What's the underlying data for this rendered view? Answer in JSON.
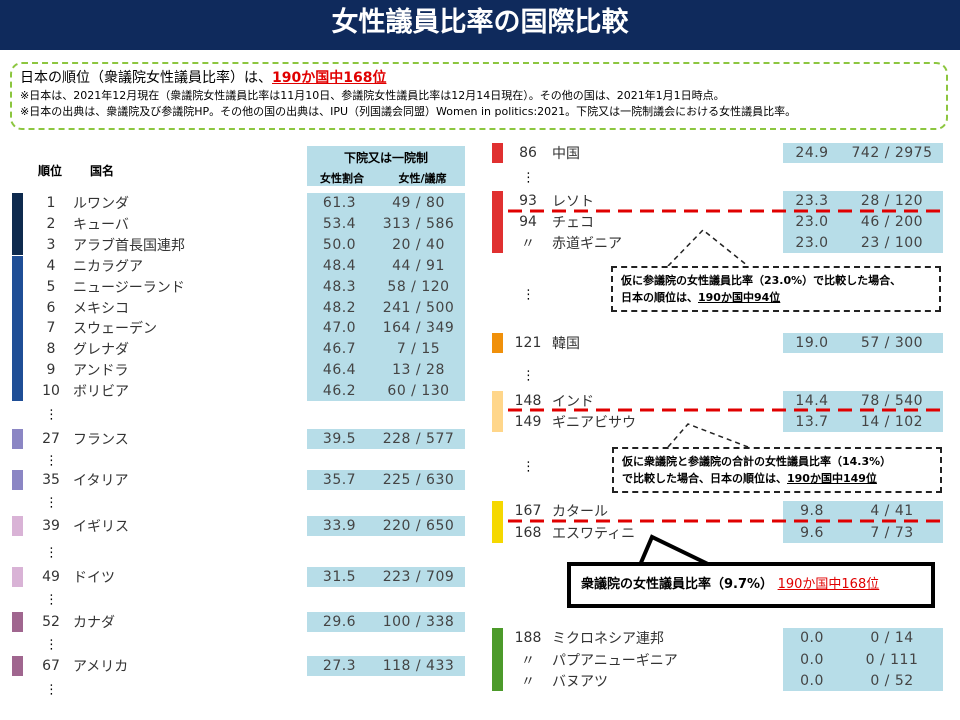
{
  "header": {
    "title": "女性議員比率の国際比較"
  },
  "summary": {
    "lead": "日本の順位（衆議院女性議員比率）は、",
    "rank": "190か国中168位",
    "notes": [
      "※日本は、2021年12月現在（衆議院女性議員比率は11月10日、参議院女性議員比率は12月14日現在）。その他の国は、2021年1月1日時点。",
      "※日本の出典は、衆議院及び参議院HP。その他の国の出典は、IPU（列国議会同盟）Women in politics:2021。下院又は一院制議会における女性議員比率。"
    ]
  },
  "left_table": {
    "headers": {
      "rank": "順位",
      "country": "国名",
      "group": "下院又は一院制",
      "ratio": "女性割合",
      "seats": "女性/議席"
    },
    "rows": [
      [
        "1",
        "ルワンダ",
        "61.3",
        "49 / 80"
      ],
      [
        "2",
        "キューバ",
        "53.4",
        "313 / 586"
      ],
      [
        "3",
        "アラブ首長国連邦",
        "50.0",
        "20 / 40"
      ],
      [
        "4",
        "ニカラグア",
        "48.4",
        "44 / 91"
      ],
      [
        "5",
        "ニュージーランド",
        "48.3",
        "58 / 120"
      ],
      [
        "6",
        "メキシコ",
        "48.2",
        "241 / 500"
      ],
      [
        "7",
        "スウェーデン",
        "47.0",
        "164 / 349"
      ],
      [
        "8",
        "グレナダ",
        "46.7",
        "7 / 15"
      ],
      [
        "9",
        "アンドラ",
        "46.4",
        "13 / 28"
      ],
      [
        "10",
        "ボリビア",
        "46.2",
        "60 / 130"
      ],
      [
        "27",
        "フランス",
        "39.5",
        "228 / 577"
      ],
      [
        "35",
        "イタリア",
        "35.7",
        "225 / 630"
      ],
      [
        "39",
        "イギリス",
        "33.9",
        "220 / 650"
      ],
      [
        "49",
        "ドイツ",
        "31.5",
        "223 / 709"
      ],
      [
        "52",
        "カナダ",
        "29.6",
        "100 / 338"
      ],
      [
        "67",
        "アメリカ",
        "27.3",
        "118 / 433"
      ]
    ]
  },
  "right_table": {
    "rows": [
      [
        "86",
        "中国",
        "24.9",
        "742 / 2975"
      ],
      [
        "93",
        "レソト",
        "23.3",
        "28 / 120"
      ],
      [
        "94",
        "チェコ",
        "23.0",
        "46 / 200"
      ],
      [
        "〃",
        "赤道ギニア",
        "23.0",
        "23 / 100"
      ],
      [
        "121",
        "韓国",
        "19.0",
        "57 / 300"
      ],
      [
        "148",
        "インド",
        "14.4",
        "78 / 540"
      ],
      [
        "149",
        "ギニアビサウ",
        "13.7",
        "14 / 102"
      ],
      [
        "167",
        "カタール",
        "9.8",
        "4 / 41"
      ],
      [
        "168",
        "エスワティニ",
        "9.6",
        "7 / 73"
      ],
      [
        "188",
        "ミクロネシア連邦",
        "0.0",
        "0 / 14"
      ],
      [
        "〃",
        "パプアニューギニア",
        "0.0",
        "0 / 111"
      ],
      [
        "〃",
        "バヌアツ",
        "0.0",
        "0 / 52"
      ]
    ]
  },
  "callouts": [
    {
      "line1": "仮に参議院の女性議員比率（23.0%）で比較した場合、",
      "line2": "日本の順位は、",
      "rank": "190か国中94位"
    },
    {
      "line1": "仮に衆議院と参議院の合計の女性議員比率（14.3%）",
      "line2": "で比較した場合、日本の順位は、",
      "rank": "190か国中149位"
    },
    {
      "line1": "衆議院の女性議員比率（9.7%）",
      "rank": "190か国中168位"
    }
  ]
}
